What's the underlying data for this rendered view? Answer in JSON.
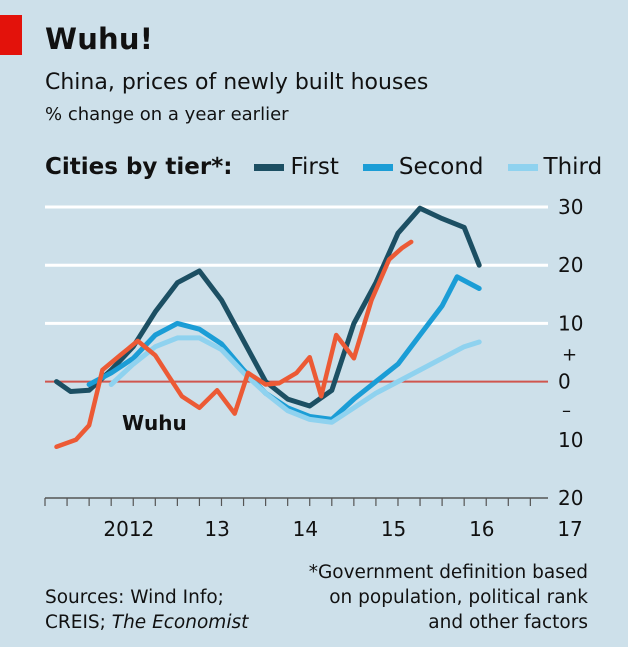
{
  "header": {
    "title": "Wuhu!",
    "subtitle": "China, prices of newly built houses",
    "unit": "% change on a year earlier"
  },
  "legend": {
    "title": "Cities by tier*:",
    "items": [
      {
        "label": "First",
        "color": "#1c4f63"
      },
      {
        "label": "Second",
        "color": "#1b9dd6"
      },
      {
        "label": "Third",
        "color": "#8fd2ef"
      }
    ]
  },
  "annotation": {
    "label": "Wuhu",
    "color": "#ec5a35"
  },
  "footer": {
    "sources_line1": "Sources: Wind Info;",
    "sources_line2_prefix": "CREIS; ",
    "sources_line2_italic": "The Economist",
    "footnote_line1": "*Government definition based",
    "footnote_line2": "on population, political rank",
    "footnote_line3": "and other factors"
  },
  "colors": {
    "accent": "#e3120b",
    "background": "#cde0ea",
    "zero_line": "#d0564e",
    "grid": "#ffffff"
  },
  "chart_data": {
    "type": "line",
    "ylim": [
      -20,
      30
    ],
    "xlim": [
      2011.5,
      2017.2
    ],
    "yticks": [
      {
        "value": 30,
        "label": "30"
      },
      {
        "value": 20,
        "label": "20"
      },
      {
        "value": 10,
        "label": "10"
      },
      {
        "value": 0,
        "label": "0"
      },
      {
        "value": -10,
        "label": "10"
      },
      {
        "value": -20,
        "label": "20"
      }
    ],
    "sign_labels": {
      "plus": "+",
      "minus": "–"
    },
    "xticks": [
      {
        "value": 2012,
        "label": "2012"
      },
      {
        "value": 2013,
        "label": "13"
      },
      {
        "value": 2014,
        "label": "14"
      },
      {
        "value": 2015,
        "label": "15"
      },
      {
        "value": 2016,
        "label": "16"
      },
      {
        "value": 2017,
        "label": "17"
      }
    ],
    "series": [
      {
        "name": "First",
        "color": "#1c4f63",
        "points": [
          [
            2011.63,
            0
          ],
          [
            2011.79,
            -1.7
          ],
          [
            2012.0,
            -1.5
          ],
          [
            2012.25,
            2
          ],
          [
            2012.5,
            6
          ],
          [
            2012.75,
            12
          ],
          [
            2013.0,
            17
          ],
          [
            2013.25,
            19
          ],
          [
            2013.5,
            14
          ],
          [
            2013.75,
            7
          ],
          [
            2014.0,
            0
          ],
          [
            2014.25,
            -3
          ],
          [
            2014.5,
            -4.2
          ],
          [
            2014.75,
            -1.5
          ],
          [
            2015.0,
            10
          ],
          [
            2015.25,
            17
          ],
          [
            2015.5,
            25.5
          ],
          [
            2015.75,
            29.8
          ],
          [
            2016.0,
            28
          ],
          [
            2016.25,
            26.5
          ],
          [
            2016.42,
            20
          ]
        ]
      },
      {
        "name": "Second",
        "color": "#1b9dd6",
        "points": [
          [
            2012.0,
            -0.5
          ],
          [
            2012.25,
            1.5
          ],
          [
            2012.5,
            4
          ],
          [
            2012.75,
            8
          ],
          [
            2013.0,
            10
          ],
          [
            2013.25,
            9
          ],
          [
            2013.5,
            6.5
          ],
          [
            2013.75,
            2
          ],
          [
            2014.0,
            -2
          ],
          [
            2014.25,
            -4.5
          ],
          [
            2014.5,
            -6
          ],
          [
            2014.75,
            -6.5
          ],
          [
            2015.0,
            -3
          ],
          [
            2015.25,
            0
          ],
          [
            2015.5,
            3
          ],
          [
            2015.75,
            8
          ],
          [
            2016.0,
            13
          ],
          [
            2016.17,
            18
          ],
          [
            2016.42,
            16
          ]
        ]
      },
      {
        "name": "Third",
        "color": "#8fd2ef",
        "points": [
          [
            2012.25,
            -0.5
          ],
          [
            2012.5,
            3
          ],
          [
            2012.75,
            6
          ],
          [
            2013.0,
            7.5
          ],
          [
            2013.25,
            7.5
          ],
          [
            2013.5,
            5.5
          ],
          [
            2013.75,
            1.5
          ],
          [
            2014.0,
            -2
          ],
          [
            2014.25,
            -5
          ],
          [
            2014.5,
            -6.5
          ],
          [
            2014.75,
            -7
          ],
          [
            2015.0,
            -4.5
          ],
          [
            2015.25,
            -2
          ],
          [
            2015.5,
            0
          ],
          [
            2015.75,
            2
          ],
          [
            2016.0,
            4
          ],
          [
            2016.25,
            6
          ],
          [
            2016.42,
            6.8
          ]
        ]
      },
      {
        "name": "Wuhu",
        "color": "#ec5a35",
        "points": [
          [
            2011.63,
            -11.2
          ],
          [
            2011.85,
            -10
          ],
          [
            2012.0,
            -7.5
          ],
          [
            2012.15,
            2
          ],
          [
            2012.35,
            4.5
          ],
          [
            2012.55,
            7
          ],
          [
            2012.75,
            4.5
          ],
          [
            2012.9,
            1
          ],
          [
            2013.05,
            -2.5
          ],
          [
            2013.25,
            -4.5
          ],
          [
            2013.45,
            -1.5
          ],
          [
            2013.65,
            -5.5
          ],
          [
            2013.8,
            1.5
          ],
          [
            2014.0,
            -0.5
          ],
          [
            2014.15,
            -0.3
          ],
          [
            2014.35,
            1.5
          ],
          [
            2014.5,
            4.2
          ],
          [
            2014.63,
            -2.5
          ],
          [
            2014.8,
            8
          ],
          [
            2015.0,
            4
          ],
          [
            2015.2,
            14
          ],
          [
            2015.4,
            21
          ],
          [
            2015.55,
            23
          ],
          [
            2015.65,
            24
          ]
        ]
      }
    ]
  }
}
